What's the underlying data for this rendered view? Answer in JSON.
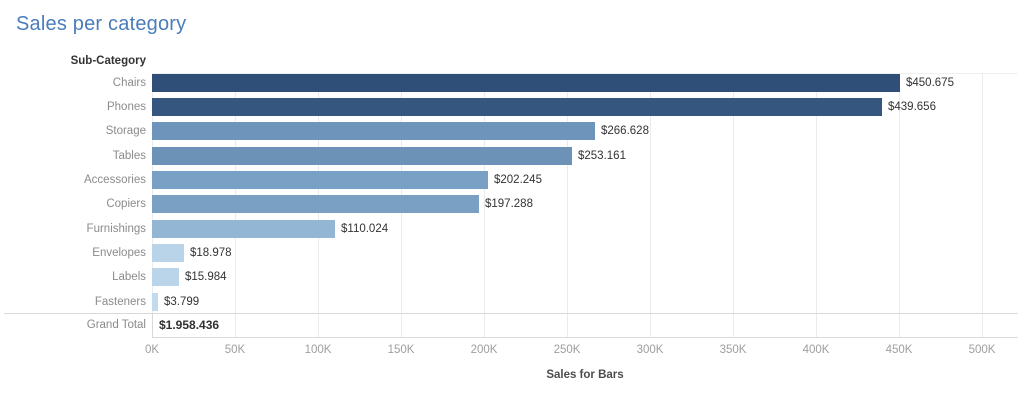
{
  "title": "Sales per category",
  "colors": {
    "title": "#4a7db9",
    "row_label": "#8b8b8b",
    "value_label": "#333333",
    "grand_total_value": "#303030",
    "tick_label": "#9e9e9e",
    "axis_label": "#4c4c4c",
    "gridline": "#ebebeb",
    "border": "#d9d9d9"
  },
  "chart_data": {
    "type": "bar",
    "orientation": "horizontal",
    "title": "Sales per category",
    "column_header": "Sub-Category",
    "xlabel": "Sales for Bars",
    "categories": [
      "Chairs",
      "Phones",
      "Storage",
      "Tables",
      "Accessories",
      "Copiers",
      "Furnishings",
      "Envelopes",
      "Labels",
      "Fasteners"
    ],
    "values": [
      450675,
      439656,
      266628,
      253161,
      202245,
      197288,
      110024,
      18978,
      15984,
      3799
    ],
    "value_labels": [
      "$450.675",
      "$439.656",
      "$266.628",
      "$253.161",
      "$202.245",
      "$197.288",
      "$110.024",
      "$18.978",
      "$15.984",
      "$3.799"
    ],
    "bar_colors": [
      "#2f4f78",
      "#35567f",
      "#6d94bb",
      "#6d92b8",
      "#79a0c5",
      "#7aa0c4",
      "#94b6d5",
      "#b9d3e9",
      "#bad4ea",
      "#c2daee"
    ],
    "grand_total": {
      "label": "Grand Total",
      "value": 1958436,
      "value_label": "$1.958.436"
    },
    "x_ticks": [
      "0K",
      "50K",
      "100K",
      "150K",
      "200K",
      "250K",
      "300K",
      "350K",
      "400K",
      "450K",
      "500K"
    ],
    "xlim": [
      0,
      500000
    ],
    "grid": true,
    "legend": null
  }
}
